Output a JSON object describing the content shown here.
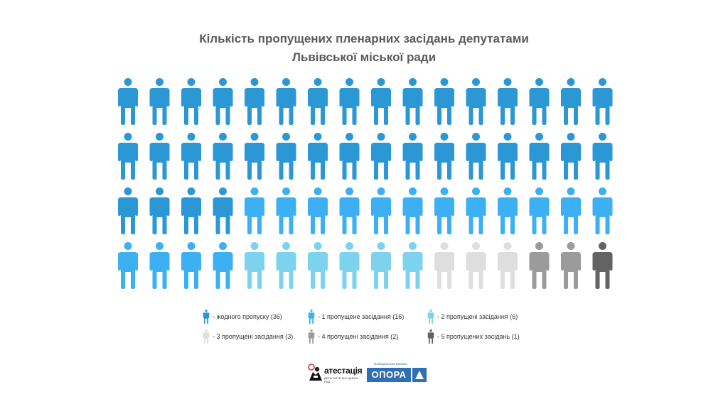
{
  "title": {
    "line1": "Кількість пропущених пленарних засідань депутатами",
    "line2": "Львівської міської ради"
  },
  "chart_data": {
    "type": "pictogram",
    "title": "Кількість пропущених пленарних засідань депутатами Львівської міської ради",
    "total": 64,
    "layout": "16 columns × 4 rows",
    "categories": [
      {
        "label": "- жодного пропуску (36)",
        "count": 36,
        "color": "#2b97d4"
      },
      {
        "label": "- 1 пропущене засідання (16)",
        "count": 16,
        "color": "#3cb0f2"
      },
      {
        "label": "- 2 пропущені засідання (6)",
        "count": 6,
        "color": "#7dd2ee"
      },
      {
        "label": "- 3 пропущені засідання (3)",
        "count": 3,
        "color": "#dedede"
      },
      {
        "label": "- 4 пропущені засідання (2)",
        "count": 2,
        "color": "#9b9b9b"
      },
      {
        "label": "- 5 пропущених засідань (1)",
        "count": 1,
        "color": "#636363"
      }
    ]
  },
  "logos": {
    "atest_name": "атестація",
    "atest_sub": "ДЕПУТАТІВ МІСЦЕВИХ РАД",
    "opora_tag": "Громадянська мережа",
    "opora_name": "ОПОРА"
  }
}
